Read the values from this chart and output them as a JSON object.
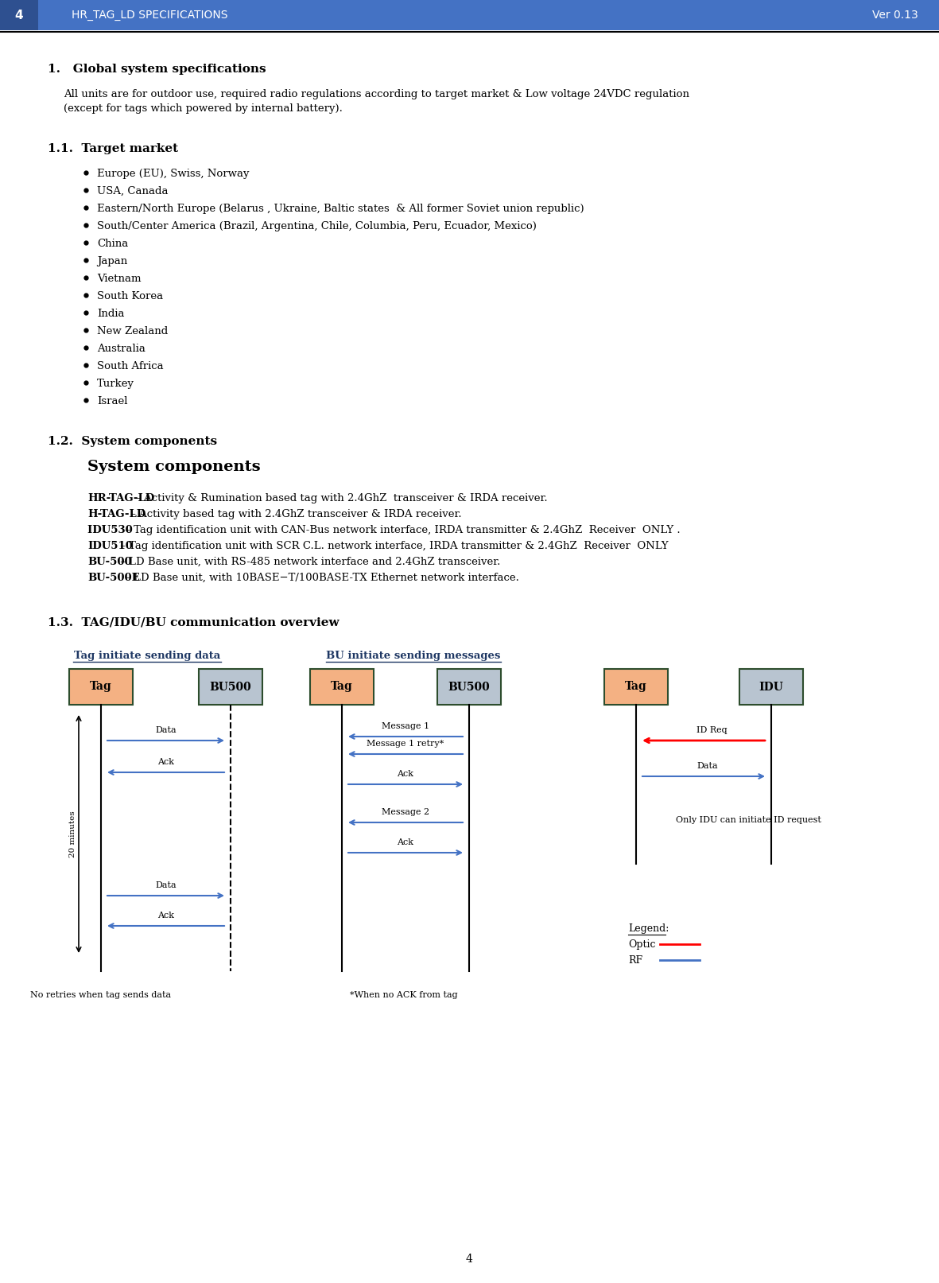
{
  "page_num": "4",
  "header_title": "HR_TAG_LD SPECIFICATIONS",
  "header_version": "Ver 0.13",
  "header_bg": "#4472C4",
  "header_text_color": "#FFFFFF",
  "section1_title": "1.   Global system specifications",
  "section1_body": "All units are for outdoor use, required radio regulations according to target market & Low voltage 24VDC regulation\n(except for tags which powered by internal battery).",
  "section11_title": "1.1.  Target market",
  "bullets": [
    "Europe (EU), Swiss, Norway",
    "USA, Canada",
    "Eastern/North Europe (Belarus , Ukraine, Baltic states  & All former Soviet union republic)",
    "South/Center America (Brazil, Argentina, Chile, Columbia, Peru, Ecuador, Mexico)",
    "China",
    "Japan",
    "Vietnam",
    "South Korea",
    "India",
    "New Zealand",
    "Australia",
    "South Africa",
    "Turkey",
    "Israel"
  ],
  "section12_title": "1.2.  System components",
  "section12_subtitle": "System components",
  "section12_items": [
    {
      "bold": "HR-TAG-LD",
      "text": " – Activity & Rumination based tag with 2.4GhZ  transceiver & IRDA receiver."
    },
    {
      "bold": "H-TAG-LD",
      "text": " – Activity based tag with 2.4GhZ transceiver & IRDA receiver."
    },
    {
      "bold": "IDU530 ",
      "text": " – Tag identification unit with CAN-Bus network interface, IRDA transmitter & 2.4GhZ  Receiver  ONLY ."
    },
    {
      "bold": "IDU510",
      "text": " – Tag identification unit with SCR C.L. network interface, IRDA transmitter & 2.4GhZ  Receiver  ONLY"
    },
    {
      "bold": "BU-500",
      "text": " – LD Base unit, with RS-485 network interface and 2.4GhZ transceiver."
    },
    {
      "bold": "BU-500E",
      "text": " – LD Base unit, with 10BASE−T/100BASE-TX Ethernet network interface."
    }
  ],
  "section13_title": "1.3.  TAG/IDU/BU communication overview",
  "diag_title_left": "Tag initiate sending data",
  "diag_title_right": "BU initiate sending messages",
  "tag_color": "#F4B183",
  "tag_border": "#2D4D2D",
  "bu_color": "#B8C4D0",
  "bu_border": "#2D4D2D",
  "arrow_color_rf": "#4472C4",
  "arrow_color_optic": "#FF0000",
  "footer_page": "4",
  "bg_color": "#FFFFFF",
  "text_color": "#000000"
}
